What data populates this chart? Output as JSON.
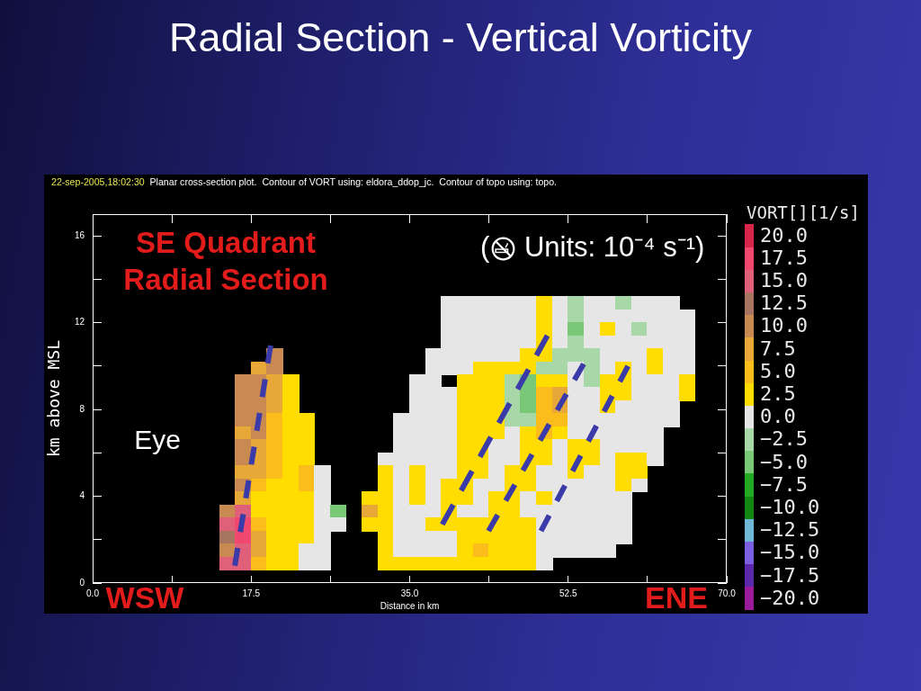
{
  "chart_data": {
    "type": "heatmap",
    "title": "Radial Section - Vertical Vorticity",
    "subtitle": "22-sep-2005,18:02:30  Planar cross-section plot.  Contour of VORT using: eldora_ddop_jc.  Contour of topo using: topo.",
    "xlabel": "Distance in km",
    "ylabel": "km above MSL",
    "clabel": "VORT[][1/s]",
    "annotations": [
      "SE Quadrant Radial Section",
      "( Units: 10⁻⁴ s⁻¹)",
      "Eye",
      "WSW",
      "ENE"
    ],
    "x": [
      14.9,
      16.6,
      18.4,
      20.1,
      21.9,
      23.6,
      25.4,
      27.1,
      30.6,
      32.4,
      34.1,
      35.9,
      37.6,
      39.4,
      41.1,
      42.9,
      44.6,
      46.4,
      48.1,
      49.9,
      51.6,
      53.4,
      55.1,
      56.9,
      58.6,
      60.4,
      62.1,
      63.9,
      65.6
    ],
    "y": [
      12.9,
      12.3,
      11.7,
      11.1,
      10.5,
      9.9,
      9.3,
      8.7,
      8.1,
      7.5,
      6.9,
      6.3,
      5.7,
      5.1,
      4.5,
      3.9,
      3.3,
      2.7,
      2.1,
      1.5,
      0.9
    ],
    "cells": [
      [
        null,
        null,
        null,
        null,
        null,
        null,
        null,
        null,
        null,
        null,
        null,
        null,
        null,
        0,
        0,
        0,
        0,
        0,
        0,
        2.5,
        0,
        -2.5,
        0,
        0,
        -2.5,
        0,
        0,
        0,
        null
      ],
      [
        null,
        null,
        null,
        null,
        null,
        null,
        null,
        null,
        null,
        null,
        null,
        null,
        null,
        0,
        0,
        0,
        0,
        0,
        0,
        2.5,
        0,
        -2.5,
        0,
        0,
        0,
        0,
        0,
        0,
        0
      ],
      [
        null,
        null,
        null,
        null,
        null,
        null,
        null,
        null,
        null,
        null,
        null,
        null,
        null,
        0,
        0,
        0,
        0,
        0,
        0,
        2.5,
        0,
        -5,
        0,
        2.5,
        0,
        -2.5,
        0,
        0,
        0
      ],
      [
        null,
        null,
        null,
        null,
        null,
        null,
        null,
        null,
        null,
        null,
        null,
        null,
        null,
        0,
        0,
        0,
        0,
        0,
        0,
        2.5,
        0,
        -2.5,
        0,
        0,
        0,
        0,
        0,
        0,
        0
      ],
      [
        null,
        null,
        null,
        10,
        null,
        null,
        null,
        null,
        null,
        null,
        null,
        null,
        0,
        0,
        0,
        0,
        0,
        0,
        2.5,
        2.5,
        -2.5,
        -2.5,
        -2.5,
        0,
        0,
        0,
        2.5,
        0,
        0
      ],
      [
        null,
        null,
        7.5,
        10,
        null,
        null,
        null,
        null,
        null,
        null,
        null,
        null,
        0,
        0,
        0,
        2.5,
        2.5,
        2.5,
        2.5,
        -2.5,
        -2.5,
        0,
        -2.5,
        0,
        2.5,
        0,
        2.5,
        0,
        0
      ],
      [
        null,
        10,
        10,
        7.5,
        2.5,
        null,
        null,
        null,
        null,
        null,
        null,
        0,
        0,
        null,
        2.5,
        2.5,
        2.5,
        -2.5,
        -5,
        2.5,
        2.5,
        0,
        -2.5,
        2.5,
        2.5,
        0,
        0,
        0,
        2.5
      ],
      [
        null,
        10,
        10,
        7.5,
        2.5,
        null,
        null,
        null,
        null,
        null,
        null,
        0,
        0,
        0,
        2.5,
        2.5,
        2.5,
        -2.5,
        -5,
        5,
        7.5,
        0,
        0,
        2.5,
        2.5,
        0,
        0,
        0,
        2.5
      ],
      [
        null,
        10,
        10,
        7.5,
        2.5,
        null,
        null,
        null,
        null,
        null,
        null,
        0,
        0,
        0,
        2.5,
        2.5,
        2.5,
        -2.5,
        -5,
        5,
        7.5,
        0,
        0,
        2.5,
        0,
        0,
        0,
        0,
        null
      ],
      [
        null,
        10,
        10,
        5,
        2.5,
        2.5,
        null,
        null,
        null,
        null,
        0,
        0,
        0,
        0,
        2.5,
        2.5,
        2.5,
        -2.5,
        -2.5,
        5,
        5,
        0,
        0,
        0,
        0,
        0,
        0,
        0,
        null
      ],
      [
        null,
        7.5,
        10,
        5,
        2.5,
        2.5,
        null,
        null,
        null,
        null,
        0,
        0,
        0,
        0,
        2.5,
        2.5,
        2.5,
        0,
        2.5,
        5,
        2.5,
        0,
        0,
        0,
        0,
        0,
        0,
        null,
        null
      ],
      [
        null,
        10,
        7.5,
        5,
        2.5,
        2.5,
        null,
        null,
        null,
        null,
        0,
        0,
        0,
        0,
        2.5,
        2.5,
        0,
        0,
        2.5,
        2.5,
        0,
        2.5,
        2.5,
        0,
        0,
        0,
        0,
        null,
        null
      ],
      [
        null,
        10,
        7.5,
        5,
        2.5,
        2.5,
        null,
        null,
        null,
        0,
        0,
        0,
        0,
        0,
        2.5,
        2.5,
        0,
        0,
        2.5,
        2.5,
        0,
        2.5,
        2.5,
        0,
        2.5,
        2.5,
        0,
        null,
        null
      ],
      [
        null,
        7.5,
        7.5,
        5,
        2.5,
        5,
        0,
        null,
        null,
        2.5,
        0,
        2.5,
        0,
        0,
        2.5,
        2.5,
        0,
        2.5,
        2.5,
        0,
        0,
        2.5,
        0,
        0,
        2.5,
        2.5,
        null,
        null,
        null
      ],
      [
        null,
        10,
        5,
        2.5,
        2.5,
        5,
        0,
        null,
        null,
        2.5,
        0,
        2.5,
        0,
        2.5,
        2.5,
        0,
        0,
        2.5,
        2.5,
        0,
        0,
        0,
        0,
        0,
        2.5,
        0,
        null,
        null,
        null
      ],
      [
        null,
        7.5,
        2.5,
        2.5,
        2.5,
        2.5,
        0,
        null,
        2.5,
        2.5,
        0,
        2.5,
        0,
        2.5,
        2.5,
        0,
        2.5,
        2.5,
        0,
        2.5,
        0,
        0,
        0,
        0,
        0,
        null,
        null,
        null,
        null
      ],
      [
        10,
        15,
        2.5,
        2.5,
        2.5,
        2.5,
        0,
        -5,
        7.5,
        2.5,
        0,
        0,
        0,
        2.5,
        0,
        0,
        2.5,
        2.5,
        0,
        0,
        0,
        0,
        0,
        0,
        0,
        null,
        null,
        null,
        null
      ],
      [
        15,
        17.5,
        5,
        2.5,
        2.5,
        2.5,
        0,
        0,
        2.5,
        2.5,
        0,
        0,
        2.5,
        2.5,
        2.5,
        2.5,
        2.5,
        2.5,
        2.5,
        0,
        0,
        0,
        0,
        0,
        0,
        null,
        null,
        null,
        null
      ],
      [
        12.5,
        17.5,
        7.5,
        2.5,
        2.5,
        2.5,
        0,
        null,
        null,
        2.5,
        0,
        0,
        0,
        0,
        2.5,
        2.5,
        2.5,
        2.5,
        2.5,
        0,
        0,
        0,
        0,
        0,
        0,
        null,
        null,
        null,
        null
      ],
      [
        10,
        15,
        7.5,
        2.5,
        2.5,
        0,
        0,
        null,
        null,
        2.5,
        0,
        0,
        0,
        0,
        2.5,
        5,
        2.5,
        2.5,
        2.5,
        0,
        0,
        0,
        0,
        0,
        null,
        null,
        null,
        null,
        null
      ],
      [
        15,
        15,
        5,
        2.5,
        2.5,
        0,
        0,
        null,
        null,
        2.5,
        2.5,
        2.5,
        2.5,
        2.5,
        2.5,
        2.5,
        2.5,
        2.5,
        2.5,
        0,
        null,
        null,
        null,
        null,
        null,
        null,
        null,
        null,
        null
      ]
    ],
    "clim": [
      -21.25,
      21.25
    ],
    "cticks": [
      {
        "value": 20,
        "label": "20.0"
      },
      17.5,
      {
        "value": 15,
        "label": "15.0"
      },
      12.5,
      {
        "value": 10,
        "label": "10.0"
      },
      7.5,
      {
        "value": 5,
        "label": "5.0"
      },
      2.5,
      {
        "value": 0,
        "label": "0.0"
      },
      {
        "value": -2.5,
        "label": "−2.5"
      },
      {
        "value": -5,
        "label": "−5.0"
      },
      {
        "value": -7.5,
        "label": "−7.5"
      },
      {
        "value": -10,
        "label": "−10.0"
      },
      {
        "value": -12.5,
        "label": "−12.5"
      },
      {
        "value": -15,
        "label": "−15.0"
      },
      {
        "value": -17.5,
        "label": "−17.5"
      },
      {
        "value": -20,
        "label": "−20.0"
      }
    ],
    "colors": [
      "#d8254a",
      "#f0486e",
      "#e0607a",
      "#a87560",
      "#c88a50",
      "#e8a838",
      "#fbbd1c",
      "#ffdd00",
      "#e6e6e6",
      "#a8d8a8",
      "#78c878",
      "#22aa22",
      "#118811",
      "#70b8d8",
      "#7a60e0",
      "#5a28a8",
      "#9a1a9a"
    ],
    "xlim": [
      0,
      70
    ],
    "xticks": [
      {
        "value": 0,
        "label": "0.0"
      },
      {
        "value": 8.75,
        "label": null
      },
      17.5,
      {
        "value": 26.25,
        "label": null
      },
      {
        "value": 35,
        "label": "35.0"
      },
      {
        "value": 43.75,
        "label": null
      },
      52.5,
      {
        "value": 61.25,
        "label": null
      },
      {
        "value": 70,
        "label": "70.0"
      }
    ],
    "ylim": [
      0,
      17
    ],
    "yticks": [
      0,
      {
        "value": 2,
        "label": null
      },
      4,
      {
        "value": 6,
        "label": null
      },
      8,
      {
        "value": 10,
        "label": null
      },
      12,
      {
        "value": 14,
        "label": null
      },
      16
    ],
    "series": [
      {
        "type": "line",
        "x": [
          15.7,
          19.65
        ],
        "values": [
          0.8,
          10.95
        ],
        "color": "#3a3aa8",
        "line_style": "dashed"
      },
      {
        "type": "line",
        "x": [
          38.6,
          50.2
        ],
        "values": [
          2.7,
          11.4
        ],
        "color": "#3a3aa8",
        "line_style": "dashed"
      },
      {
        "type": "line",
        "x": [
          43.7,
          54.2
        ],
        "values": [
          2.4,
          10.1
        ],
        "color": "#3a3aa8",
        "line_style": "dashed"
      },
      {
        "type": "line",
        "x": [
          49.5,
          59.1
        ],
        "values": [
          2.4,
          10.0
        ],
        "color": "#3a3aa8",
        "line_style": "dashed"
      }
    ]
  }
}
